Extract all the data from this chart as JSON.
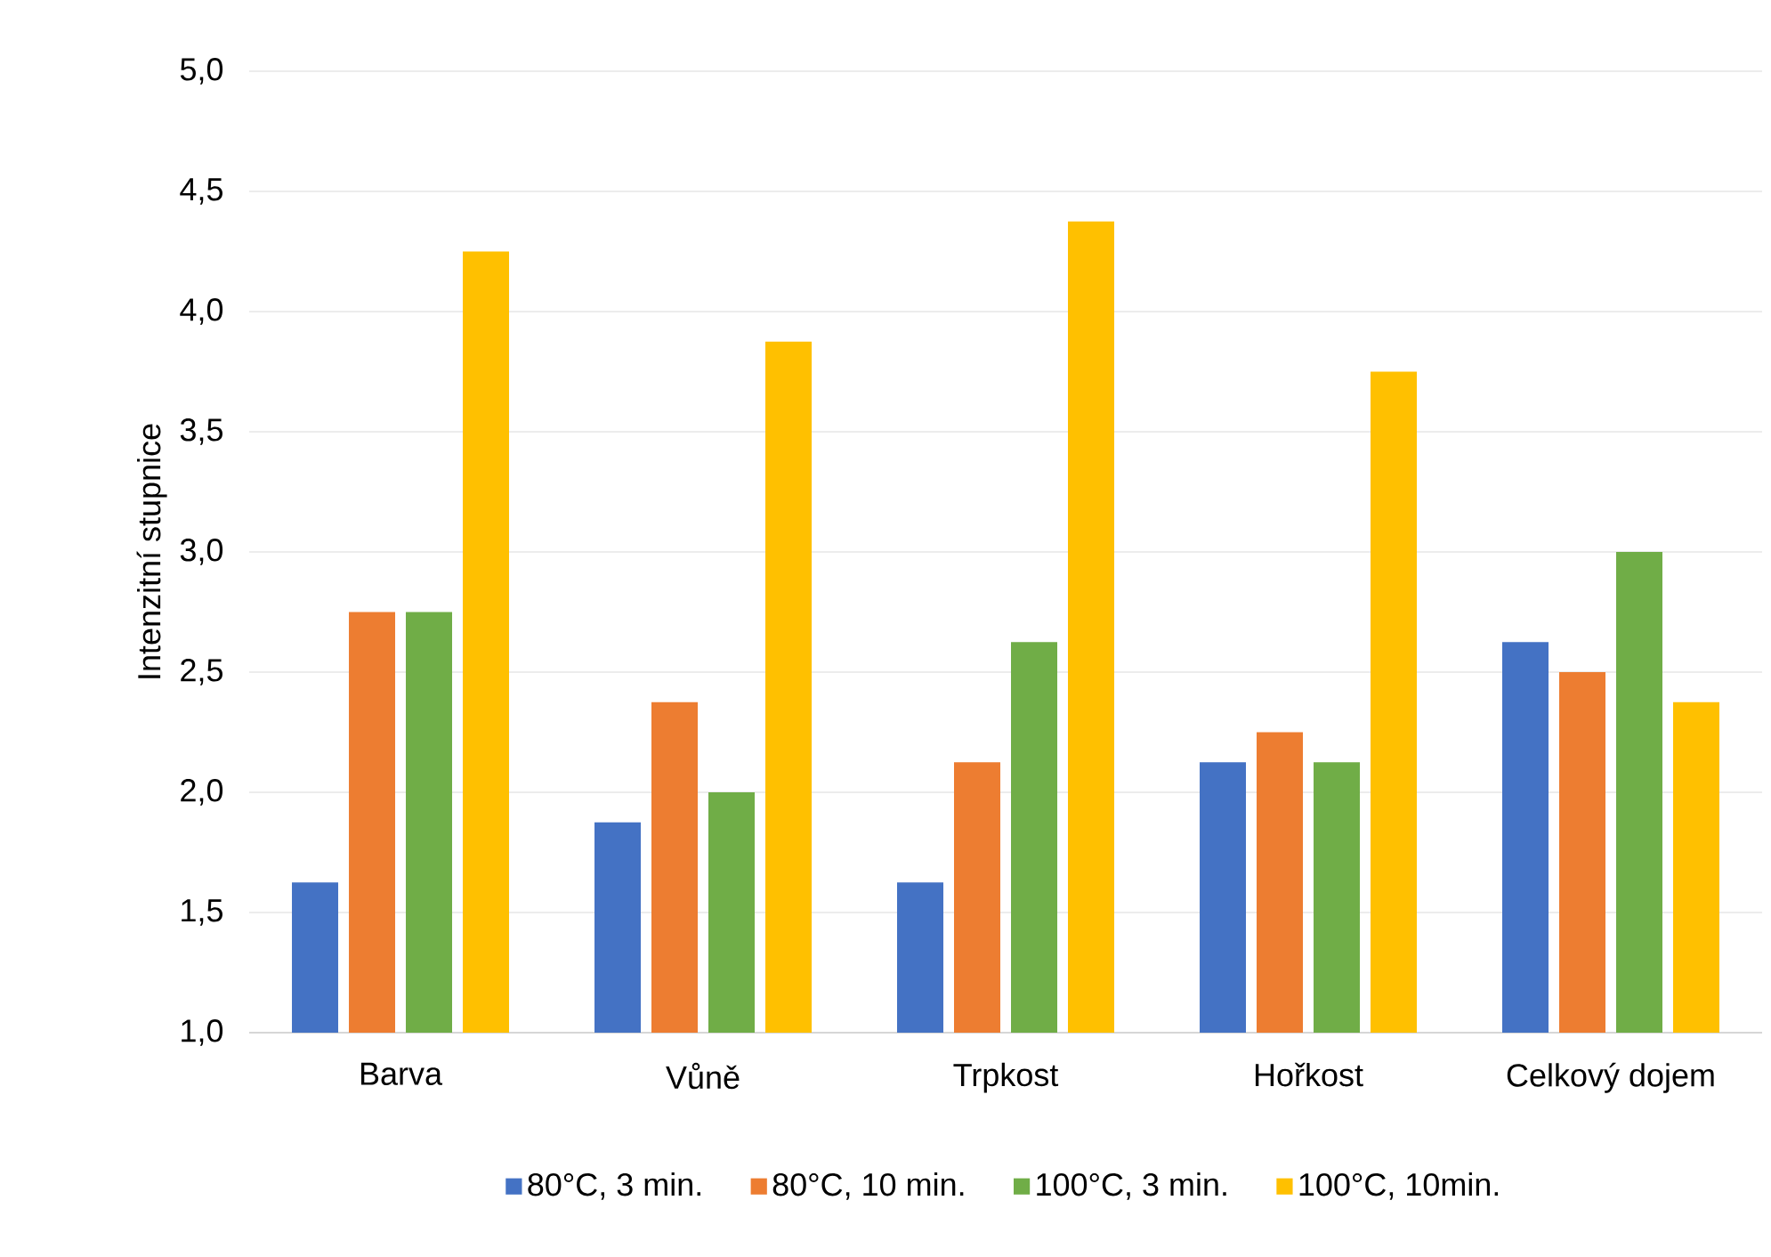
{
  "chart_data": {
    "type": "bar",
    "ylabel": "Intenzitní stupnice",
    "categories": [
      "Barva",
      "Vůně",
      "Trpkost",
      "Hořkost",
      "Celkový dojem"
    ],
    "series": [
      {
        "name": "80°C, 3 min.",
        "color": "#4472c4",
        "values": [
          1.625,
          1.875,
          1.625,
          2.125,
          2.625
        ]
      },
      {
        "name": "80°C, 10 min.",
        "color": "#ed7d31",
        "values": [
          2.75,
          2.375,
          2.125,
          2.25,
          2.5
        ]
      },
      {
        "name": "100°C, 3 min.",
        "color": "#70ad47",
        "values": [
          2.75,
          2.0,
          2.625,
          2.125,
          3.0
        ]
      },
      {
        "name": "100°C, 10min.",
        "color": "#ffc000",
        "values": [
          4.25,
          3.875,
          4.375,
          3.75,
          2.375
        ]
      }
    ],
    "ylim": [
      1.0,
      5.0
    ],
    "yticks": [
      {
        "value": 1.0,
        "label": "1,0"
      },
      {
        "value": 1.5,
        "label": "1,5"
      },
      {
        "value": 2.0,
        "label": "2,0"
      },
      {
        "value": 2.5,
        "label": "2,5"
      },
      {
        "value": 3.0,
        "label": "3,0"
      },
      {
        "value": 3.5,
        "label": "3,5"
      },
      {
        "value": 4.0,
        "label": "4,0"
      },
      {
        "value": 4.5,
        "label": "4,5"
      },
      {
        "value": 5.0,
        "label": "5,0"
      }
    ],
    "grid": "y",
    "legend": "bottom"
  }
}
